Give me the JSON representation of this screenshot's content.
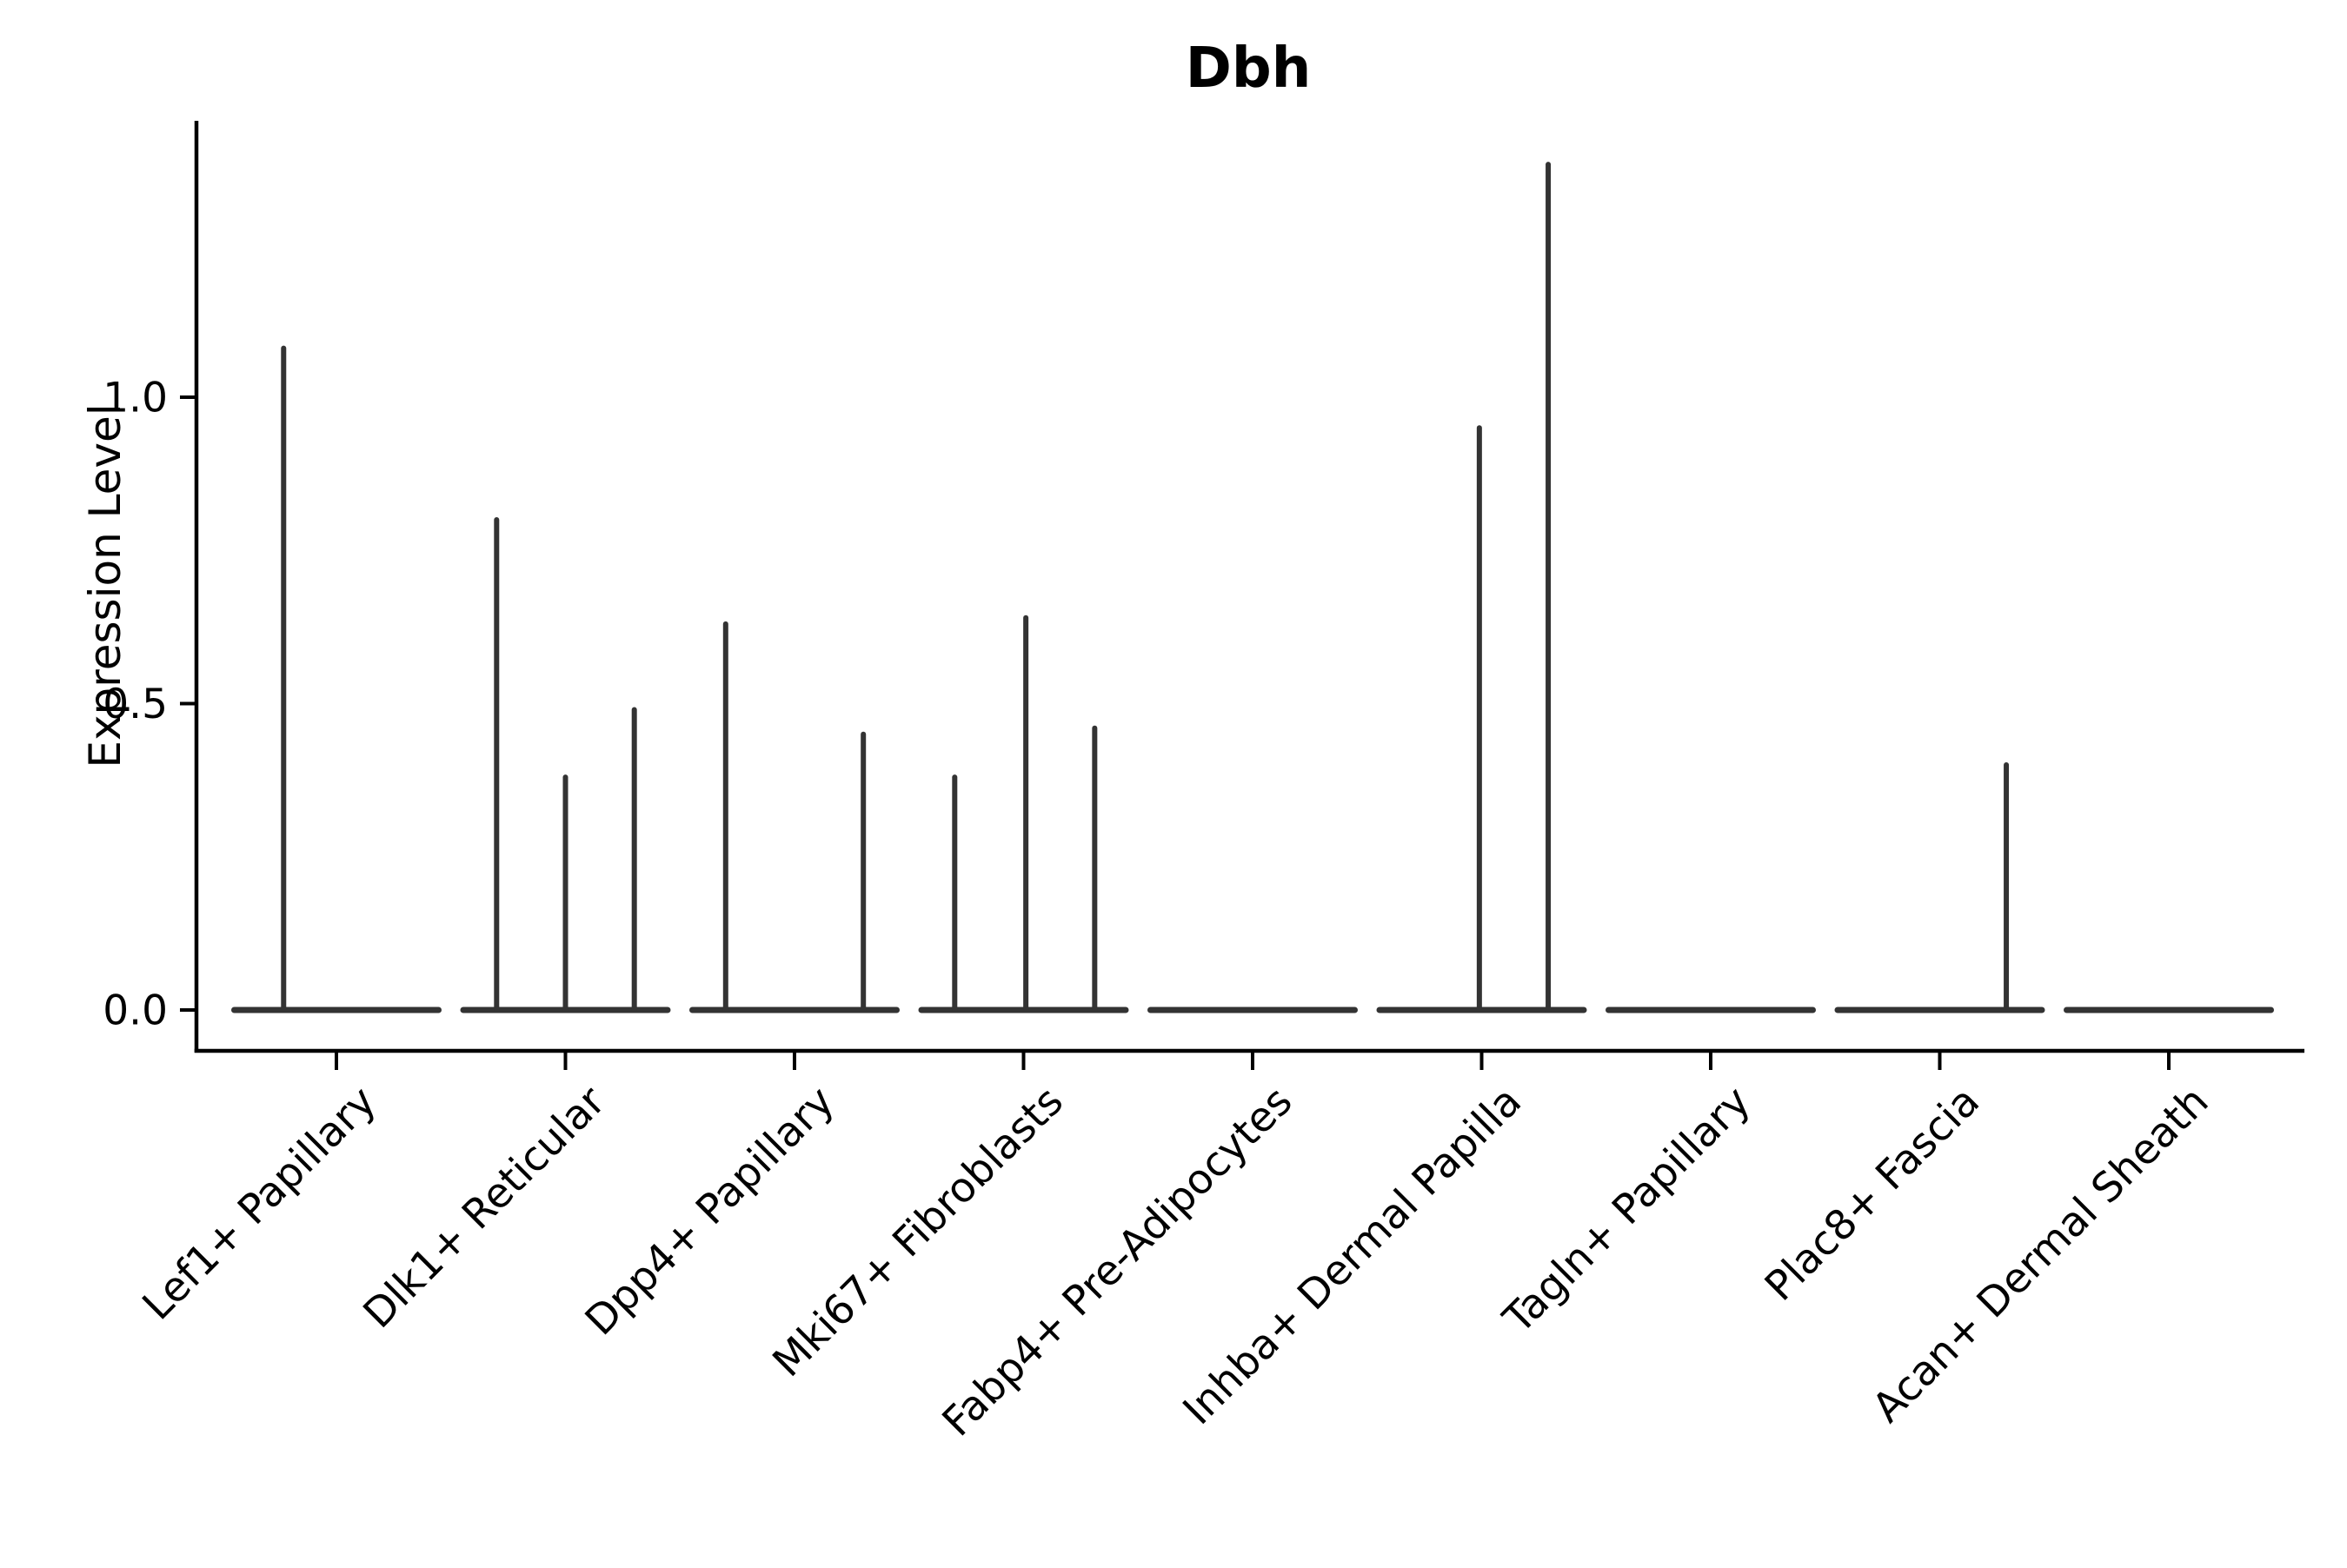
{
  "page": {
    "background": "#ffffff"
  },
  "chart_data": {
    "type": "violin",
    "title": "Dbh",
    "ylabel": "Expression Level",
    "xlabel": "",
    "grid": false,
    "legend": "none",
    "ylim": [
      -0.07,
      1.45
    ],
    "yticks": [
      {
        "value": 0.0,
        "label": "0.0"
      },
      {
        "value": 0.5,
        "label": "0.5"
      },
      {
        "value": 1.0,
        "label": "1.0"
      }
    ],
    "categories": [
      "Lef1+ Papillary",
      "Dlk1+ Reticular",
      "Dpp4+ Papillary",
      "Mki67+ Fibroblasts",
      "Fabp4+ Pre-Adipocytes",
      "Inhba+ Dermal Papilla",
      "Tagln+ Papillary",
      "Plac8+ Fascia",
      "Acan+ Dermal Sheath"
    ],
    "style": {
      "violin_color": "#333333",
      "axis_color": "#000000",
      "text_color": "#000000"
    },
    "violins": [
      {
        "category": "Lef1+ Papillary",
        "baseline_value": 0.0,
        "sub_violins": [
          {
            "x_offset_frac": -0.23,
            "max_expression": 1.08
          }
        ]
      },
      {
        "category": "Dlk1+ Reticular",
        "baseline_value": 0.0,
        "sub_violins": [
          {
            "x_offset_frac": -0.3,
            "max_expression": 0.8
          },
          {
            "x_offset_frac": 0.0,
            "max_expression": 0.38
          },
          {
            "x_offset_frac": 0.3,
            "max_expression": 0.49
          }
        ]
      },
      {
        "category": "Dpp4+ Papillary",
        "baseline_value": 0.0,
        "sub_violins": [
          {
            "x_offset_frac": -0.3,
            "max_expression": 0.63
          },
          {
            "x_offset_frac": 0.3,
            "max_expression": 0.45
          }
        ]
      },
      {
        "category": "Mki67+ Fibroblasts",
        "baseline_value": 0.0,
        "sub_violins": [
          {
            "x_offset_frac": -0.3,
            "max_expression": 0.38
          },
          {
            "x_offset_frac": 0.01,
            "max_expression": 0.64
          },
          {
            "x_offset_frac": 0.31,
            "max_expression": 0.46
          }
        ]
      },
      {
        "category": "Fabp4+ Pre-Adipocytes",
        "baseline_value": 0.0,
        "sub_violins": []
      },
      {
        "category": "Inhba+ Dermal Papilla",
        "baseline_value": 0.0,
        "sub_violins": [
          {
            "x_offset_frac": -0.01,
            "max_expression": 0.95
          },
          {
            "x_offset_frac": 0.29,
            "max_expression": 1.38
          }
        ]
      },
      {
        "category": "Tagln+ Papillary",
        "baseline_value": 0.0,
        "sub_violins": []
      },
      {
        "category": "Plac8+ Fascia",
        "baseline_value": 0.0,
        "sub_violins": [
          {
            "x_offset_frac": 0.29,
            "max_expression": 0.4
          }
        ]
      },
      {
        "category": "Acan+ Dermal Sheath",
        "baseline_value": 0.0,
        "sub_violins": []
      }
    ]
  }
}
